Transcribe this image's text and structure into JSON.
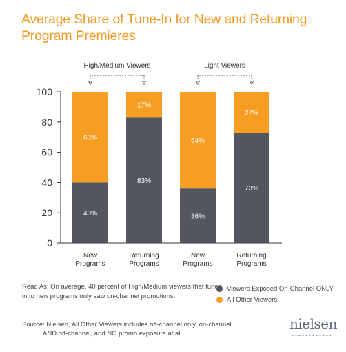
{
  "title": "Average Share of Tune-In for New and Returning Program Premieres",
  "group_labels": [
    "High/Medium Viewers",
    "Light Viewers"
  ],
  "read_as": "Read As: On average, 40 percent of High/Medium viewers that tuned in to new programs only saw on-channel promotions.",
  "source_line1": "Source: Nielsen, All Other Viewers includes off-channel only, on-channel",
  "source_line2": "AND off-channel, and NO promo exposure at all.",
  "logo": "nielsen",
  "colors": {
    "exposed": "#53565e",
    "other": "#f59e22",
    "title": "#f29a24"
  },
  "chart_data": {
    "type": "bar",
    "stacked": true,
    "title": "Average Share of Tune-In for New and Returning Program Premieres",
    "categories": [
      "New\nPrograms",
      "Returning\nPrograms",
      "New\nPrograms",
      "Returning\nPrograms"
    ],
    "ylim": [
      0,
      100
    ],
    "yticks": [
      0,
      20,
      40,
      60,
      80,
      100
    ],
    "legend_position": "bottom-right",
    "series": [
      {
        "name": "Viewers Exposed On-Channel ONLY",
        "values": [
          40,
          83,
          36,
          73
        ],
        "labels": [
          "40%",
          "83%",
          "36%",
          "73%"
        ]
      },
      {
        "name": "All Other Viewers",
        "values": [
          60,
          17,
          64,
          27
        ],
        "labels": [
          "60%",
          "17%",
          "64%",
          "27%"
        ]
      }
    ]
  }
}
